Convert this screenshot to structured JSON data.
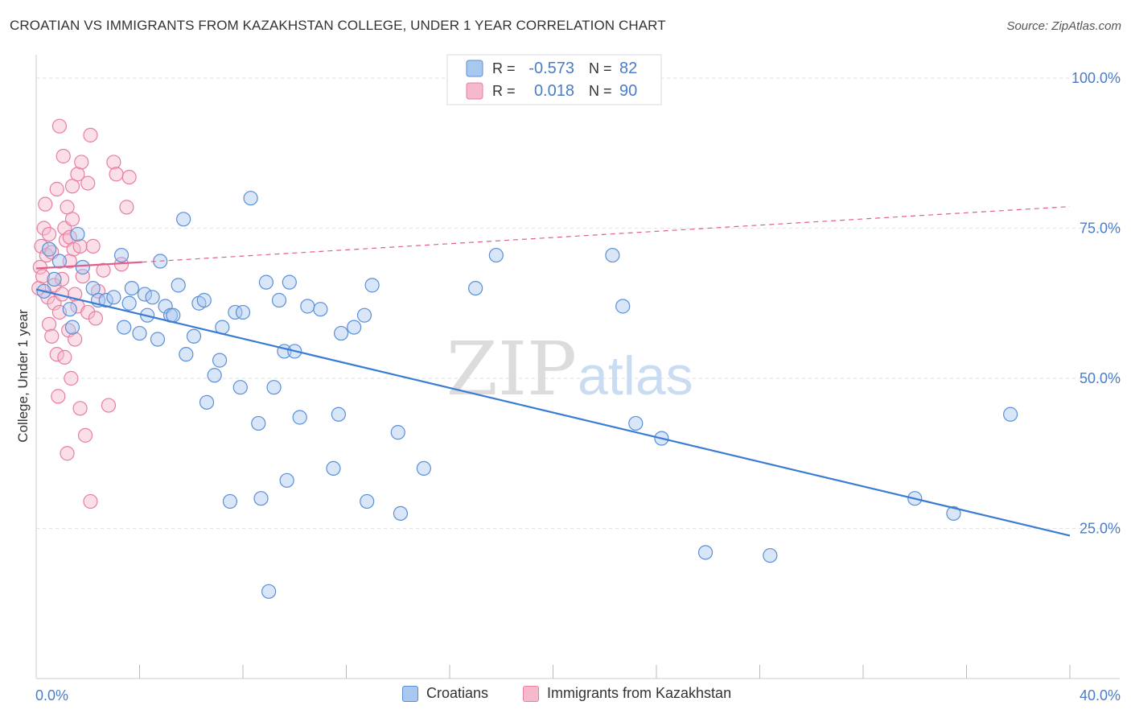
{
  "title": "CROATIAN VS IMMIGRANTS FROM KAZAKHSTAN COLLEGE, UNDER 1 YEAR CORRELATION CHART",
  "source": "Source: ZipAtlas.com",
  "watermark": {
    "zip": "ZIP",
    "atlas": "atlas"
  },
  "colors": {
    "blue_fill": "#a9c8f0",
    "blue_stroke": "#5b8fd6",
    "blue_line": "#3a7bd5",
    "pink_fill": "#f6b9cc",
    "pink_stroke": "#e77ea0",
    "pink_line": "#e0608c",
    "axis_text": "#4a7cc7",
    "grid": "#e2e2e2"
  },
  "legend_top": {
    "rows": [
      {
        "series": "blue",
        "r_label": "R = ",
        "r_value": "-0.573",
        "n_label": "N = ",
        "n_value": "82"
      },
      {
        "series": "pink",
        "r_label": "R = ",
        "r_value": "0.018",
        "n_label": "N = ",
        "n_value": "90"
      }
    ]
  },
  "legend_bottom": {
    "items": [
      {
        "series": "blue",
        "label": "Croatians"
      },
      {
        "series": "pink",
        "label": "Immigrants from Kazakhstan"
      }
    ]
  },
  "chart_data": {
    "type": "scatter",
    "title": "CROATIAN VS IMMIGRANTS FROM KAZAKHSTAN COLLEGE, UNDER 1 YEAR CORRELATION CHART",
    "xlabel": "",
    "ylabel": "College, Under 1 year",
    "xlim": [
      0,
      40
    ],
    "ylim": [
      0,
      105
    ],
    "x_tick_labels": [
      {
        "value": 0,
        "label": "0.0%"
      },
      {
        "value": 40,
        "label": "40.0%"
      }
    ],
    "y_tick_labels": [
      {
        "value": 25,
        "label": "25.0%"
      },
      {
        "value": 50,
        "label": "50.0%"
      },
      {
        "value": 75,
        "label": "75.0%"
      },
      {
        "value": 100,
        "label": "100.0%"
      }
    ],
    "grid": true,
    "legend": "top-center",
    "series": [
      {
        "name": "Croatians",
        "color": "blue",
        "points": [
          [
            0.3,
            64.5
          ],
          [
            0.5,
            71.5
          ],
          [
            0.7,
            66.5
          ],
          [
            0.9,
            69.5
          ],
          [
            1.3,
            61.5
          ],
          [
            1.4,
            58.5
          ],
          [
            1.6,
            74
          ],
          [
            1.8,
            68.5
          ],
          [
            2.2,
            65
          ],
          [
            2.4,
            63
          ],
          [
            2.7,
            63
          ],
          [
            3,
            63.5
          ],
          [
            3.3,
            70.5
          ],
          [
            3.4,
            58.5
          ],
          [
            3.6,
            62.5
          ],
          [
            3.7,
            65
          ],
          [
            4.0,
            57.5
          ],
          [
            4.2,
            64
          ],
          [
            4.3,
            60.5
          ],
          [
            4.5,
            63.5
          ],
          [
            4.7,
            56.5
          ],
          [
            4.8,
            69.5
          ],
          [
            5.0,
            62
          ],
          [
            5.2,
            60.5
          ],
          [
            5.3,
            60.5
          ],
          [
            5.5,
            65.5
          ],
          [
            5.7,
            76.5
          ],
          [
            5.8,
            54
          ],
          [
            6.1,
            57
          ],
          [
            6.3,
            62.5
          ],
          [
            6.5,
            63
          ],
          [
            6.6,
            46
          ],
          [
            6.9,
            50.5
          ],
          [
            7.1,
            53
          ],
          [
            7.2,
            58.5
          ],
          [
            7.5,
            29.5
          ],
          [
            7.7,
            61
          ],
          [
            7.9,
            48.5
          ],
          [
            8.0,
            61
          ],
          [
            8.3,
            80
          ],
          [
            8.6,
            42.5
          ],
          [
            8.7,
            30
          ],
          [
            8.9,
            66
          ],
          [
            9.0,
            14.5
          ],
          [
            9.2,
            48.5
          ],
          [
            9.4,
            63
          ],
          [
            9.6,
            54.5
          ],
          [
            9.7,
            33
          ],
          [
            9.8,
            66
          ],
          [
            10.0,
            54.5
          ],
          [
            10.2,
            43.5
          ],
          [
            10.5,
            62
          ],
          [
            11.0,
            61.5
          ],
          [
            11.5,
            35
          ],
          [
            11.7,
            44
          ],
          [
            11.8,
            57.5
          ],
          [
            12.3,
            58.5
          ],
          [
            12.7,
            60.5
          ],
          [
            12.8,
            29.5
          ],
          [
            13.0,
            65.5
          ],
          [
            14.0,
            41
          ],
          [
            14.1,
            27.5
          ],
          [
            15.0,
            35
          ],
          [
            17.0,
            65
          ],
          [
            17.8,
            70.5
          ],
          [
            22.3,
            70.5
          ],
          [
            22.7,
            62
          ],
          [
            23.2,
            42.5
          ],
          [
            24.2,
            40
          ],
          [
            25.9,
            21
          ],
          [
            28.4,
            20.5
          ],
          [
            34.0,
            30
          ],
          [
            35.5,
            27.5
          ],
          [
            37.7,
            44
          ]
        ],
        "trend": {
          "x": [
            0,
            40
          ],
          "y": [
            64.8,
            23.8
          ],
          "style": "solid"
        }
      },
      {
        "name": "Immigrants from Kazakhstan",
        "color": "pink",
        "points": [
          [
            0.1,
            65
          ],
          [
            0.15,
            68.5
          ],
          [
            0.2,
            72
          ],
          [
            0.25,
            67
          ],
          [
            0.3,
            75
          ],
          [
            0.35,
            79
          ],
          [
            0.4,
            70.5
          ],
          [
            0.45,
            63.5
          ],
          [
            0.5,
            74
          ],
          [
            0.5,
            59
          ],
          [
            0.6,
            57
          ],
          [
            0.6,
            71
          ],
          [
            0.7,
            65.5
          ],
          [
            0.7,
            62.5
          ],
          [
            0.8,
            54
          ],
          [
            0.8,
            81.5
          ],
          [
            0.85,
            47
          ],
          [
            0.9,
            61
          ],
          [
            0.9,
            92
          ],
          [
            1.0,
            66.5
          ],
          [
            1.0,
            64
          ],
          [
            1.05,
            87
          ],
          [
            1.1,
            75
          ],
          [
            1.1,
            53.5
          ],
          [
            1.15,
            73
          ],
          [
            1.2,
            78.5
          ],
          [
            1.2,
            37.5
          ],
          [
            1.25,
            58
          ],
          [
            1.3,
            73.5
          ],
          [
            1.3,
            69.5
          ],
          [
            1.35,
            50
          ],
          [
            1.4,
            76.5
          ],
          [
            1.4,
            82
          ],
          [
            1.45,
            71.5
          ],
          [
            1.5,
            64
          ],
          [
            1.5,
            56.5
          ],
          [
            1.6,
            84
          ],
          [
            1.6,
            62
          ],
          [
            1.7,
            45
          ],
          [
            1.7,
            72
          ],
          [
            1.75,
            86
          ],
          [
            1.8,
            67
          ],
          [
            1.9,
            40.5
          ],
          [
            2.0,
            82.5
          ],
          [
            2.0,
            61
          ],
          [
            2.1,
            90.5
          ],
          [
            2.1,
            29.5
          ],
          [
            2.2,
            72
          ],
          [
            2.3,
            60
          ],
          [
            2.4,
            64.5
          ],
          [
            2.6,
            68
          ],
          [
            2.8,
            45.5
          ],
          [
            3.0,
            86
          ],
          [
            3.1,
            84
          ],
          [
            3.3,
            69
          ],
          [
            3.5,
            78.5
          ],
          [
            3.6,
            83.5
          ]
        ],
        "trend": {
          "x": [
            0,
            40
          ],
          "y": [
            68.3,
            78.6
          ],
          "style": "solid-then-dashed",
          "solid_until_x": 4.1
        }
      }
    ]
  }
}
